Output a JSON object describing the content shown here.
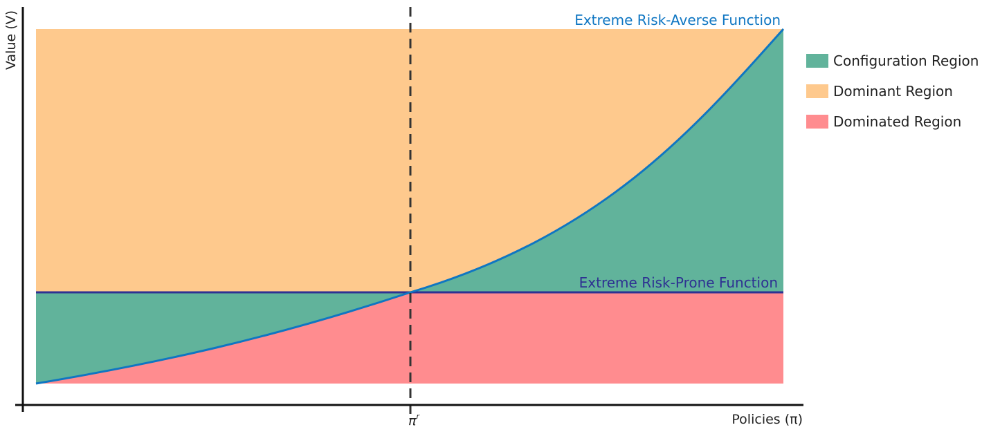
{
  "colors": {
    "configuration": "#61b39b",
    "dominant": "#fec98d",
    "dominated": "#ff8c8f",
    "averse_curve": "#0f76c2",
    "prone_line": "#2e3192",
    "axis": "#111111"
  },
  "curves": {
    "averse_label": "Extreme Risk-Averse Function",
    "prone_label": "Extreme Risk-Prone Function"
  },
  "axes": {
    "y_label": "Value (V)",
    "x_label": "Policies (π)",
    "x_tick": "π",
    "x_tick_sup": "r"
  },
  "legend": [
    {
      "label": "Configuration Region",
      "color": "#61b39b"
    },
    {
      "label": "Dominant Region",
      "color": "#fec98d"
    },
    {
      "label": "Dominated Region",
      "color": "#ff8c8f"
    }
  ]
}
